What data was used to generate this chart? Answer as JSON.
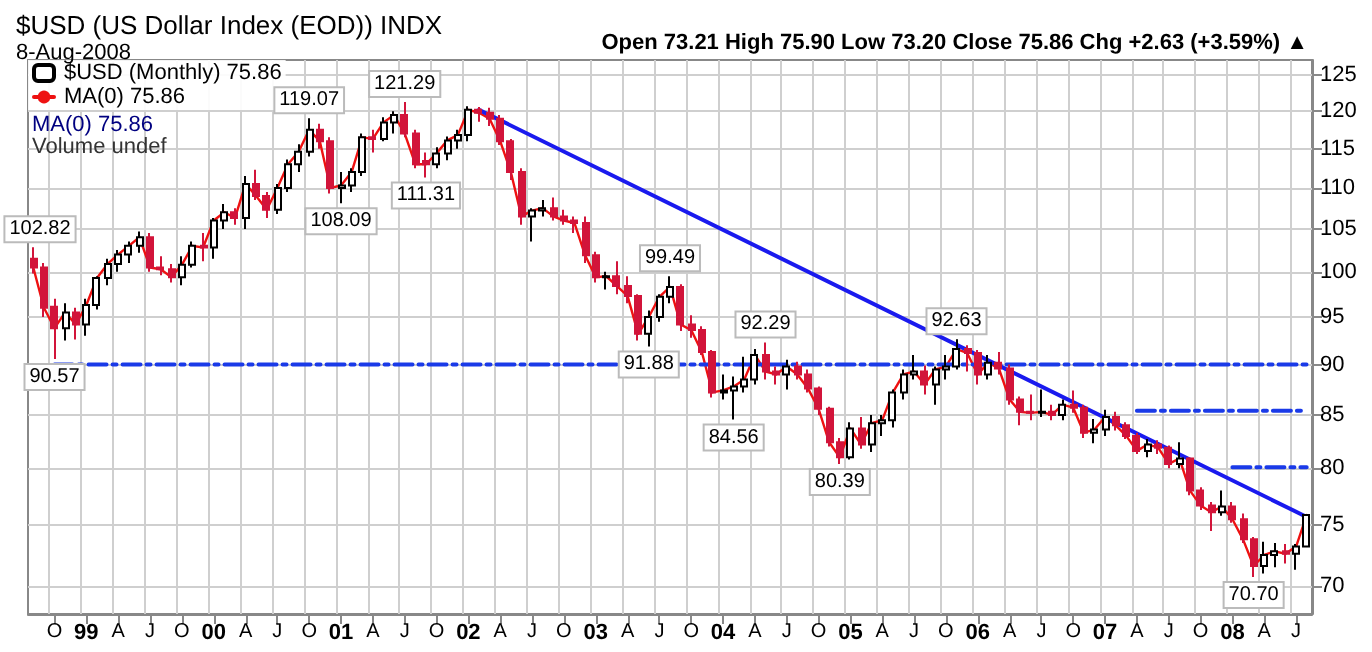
{
  "chart_data": {
    "type": "candlestick",
    "title": "$USD (US Dollar Index (EOD)) INDX",
    "subtitle": "8-Aug-2008",
    "annotations": [
      "Open 73.21 High 75.90 Low 73.20 Close 75.86 Chg +2.63 (+3.59%) ▲",
      "MA(0) 75.86",
      "Volume undef",
      {
        "text": "102.82",
        "y": 102.82
      },
      {
        "text": "90.57",
        "y": 90.57
      },
      {
        "text": "119.07",
        "y": 119.07
      },
      {
        "text": "108.09",
        "y": 108.09
      },
      {
        "text": "121.29",
        "y": 121.29
      },
      {
        "text": "111.31",
        "y": 111.31
      },
      {
        "text": "99.49",
        "y": 99.49
      },
      {
        "text": "91.88",
        "y": 91.88
      },
      {
        "text": "92.29",
        "y": 92.29
      },
      {
        "text": "84.56",
        "y": 84.56
      },
      {
        "text": "80.39",
        "y": 80.39
      },
      {
        "text": "92.63",
        "y": 92.63
      },
      {
        "text": "70.70",
        "y": 70.7
      }
    ],
    "categories": [
      null,
      null,
      "O",
      null,
      null,
      "99",
      null,
      null,
      "A",
      null,
      null,
      "J",
      null,
      null,
      "O",
      null,
      null,
      "00",
      null,
      null,
      "A",
      null,
      null,
      "J",
      null,
      null,
      "O",
      null,
      null,
      "01",
      null,
      null,
      "A",
      null,
      null,
      "J",
      null,
      null,
      "O",
      null,
      null,
      "02",
      null,
      null,
      "A",
      null,
      null,
      "J",
      null,
      null,
      "O",
      null,
      null,
      "03",
      null,
      null,
      "A",
      null,
      null,
      "J",
      null,
      null,
      "O",
      null,
      null,
      "04",
      null,
      null,
      "A",
      null,
      null,
      "J",
      null,
      null,
      "O",
      null,
      null,
      "05",
      null,
      null,
      "A",
      null,
      null,
      "J",
      null,
      null,
      "O",
      null,
      null,
      "06",
      null,
      null,
      "A",
      null,
      null,
      "J",
      null,
      null,
      "O",
      null,
      null,
      "07",
      null,
      null,
      "A",
      null,
      null,
      "J",
      null,
      null,
      "O",
      null,
      null,
      "08",
      null,
      null,
      "A",
      null,
      null,
      "J",
      null
    ],
    "log": "y",
    "ylim": [
      67.8,
      127.2
    ],
    "yticks": [
      70,
      75,
      80,
      85,
      90,
      95,
      100,
      105,
      110,
      115,
      120,
      125
    ],
    "grid": true,
    "legend": "top left",
    "series": [
      {
        "type": "candlestick",
        "name": "$USD (Monthly) 75.86",
        "colors": [
          "#d2143a",
          "#d2143a",
          "#d2143a",
          "#ffffff",
          "#d2143a",
          "#ffffff",
          "#ffffff",
          "#ffffff",
          "#ffffff",
          "#ffffff",
          "#ffffff",
          "#d2143a",
          "#d2143a",
          "#d2143a",
          "#ffffff",
          "#ffffff",
          "#d2143a",
          "#ffffff",
          "#ffffff",
          "#d2143a",
          "#ffffff",
          "#d2143a",
          "#d2143a",
          "#ffffff",
          "#ffffff",
          "#ffffff",
          "#ffffff",
          "#d2143a",
          "#d2143a",
          "#ffffff",
          "#ffffff",
          "#ffffff",
          "#d2143a",
          "#ffffff",
          "#ffffff",
          "#d2143a",
          "#d2143a",
          "#d2143a",
          "#ffffff",
          "#ffffff",
          "#ffffff",
          "#ffffff",
          "#d2143a",
          "#d2143a",
          "#d2143a",
          "#d2143a",
          "#d2143a",
          "#ffffff",
          "#ffffff",
          "#d2143a",
          "#d2143a",
          "#d2143a",
          "#d2143a",
          "#d2143a",
          "#ffffff",
          "#d2143a",
          "#d2143a",
          "#d2143a",
          "#ffffff",
          "#ffffff",
          "#ffffff",
          "#d2143a",
          "#d2143a",
          "#d2143a",
          "#d2143a",
          "#ffffff",
          "#ffffff",
          "#ffffff",
          "#ffffff",
          "#d2143a",
          "#d2143a",
          "#ffffff",
          "#d2143a",
          "#d2143a",
          "#d2143a",
          "#d2143a",
          "#d2143a",
          "#ffffff",
          "#d2143a",
          "#ffffff",
          "#ffffff",
          "#ffffff",
          "#ffffff",
          "#ffffff",
          "#d2143a",
          "#ffffff",
          "#ffffff",
          "#ffffff",
          "#d2143a",
          "#d2143a",
          "#ffffff",
          "#d2143a",
          "#d2143a",
          "#d2143a",
          "#d2143a",
          "#ffffff",
          "#d2143a",
          "#ffffff",
          "#d2143a",
          "#d2143a",
          "#ffffff",
          "#ffffff",
          "#d2143a",
          "#d2143a",
          "#d2143a",
          "#ffffff",
          "#d2143a",
          "#d2143a",
          "#ffffff",
          "#d2143a",
          "#d2143a",
          "#d2143a",
          "#ffffff",
          "#d2143a",
          "#d2143a",
          "#d2143a",
          "#ffffff",
          "#ffffff",
          "#d2143a",
          "#ffffff",
          "#ffffff"
        ],
        "ohlc": [
          [
            101.5,
            102.82,
            99.8,
            100.5
          ],
          [
            100.5,
            101.0,
            95.0,
            96.0
          ],
          [
            96.1,
            97.0,
            90.57,
            93.8
          ],
          [
            93.8,
            96.5,
            92.5,
            95.5
          ],
          [
            95.5,
            96.0,
            92.6,
            94.2
          ],
          [
            94.2,
            97.0,
            93.0,
            96.3
          ],
          [
            96.3,
            99.5,
            95.8,
            99.3
          ],
          [
            99.3,
            101.5,
            98.5,
            100.9
          ],
          [
            100.9,
            102.5,
            100.0,
            102.0
          ],
          [
            102.0,
            103.5,
            101.0,
            103.0
          ],
          [
            103.0,
            104.7,
            102.2,
            104.0
          ],
          [
            104.0,
            104.5,
            100.0,
            100.5
          ],
          [
            100.5,
            101.8,
            99.6,
            100.3
          ],
          [
            100.3,
            100.9,
            98.8,
            99.4
          ],
          [
            99.4,
            101.8,
            98.5,
            100.8
          ],
          [
            100.8,
            103.5,
            100.5,
            103.0
          ],
          [
            103.0,
            104.5,
            101.2,
            102.8
          ],
          [
            102.8,
            106.3,
            101.5,
            106.0
          ],
          [
            106.0,
            108.0,
            105.0,
            107.0
          ],
          [
            107.0,
            107.5,
            105.5,
            106.3
          ],
          [
            106.3,
            111.5,
            105.0,
            110.5
          ],
          [
            110.5,
            112.3,
            108.5,
            109.0
          ],
          [
            109.0,
            109.5,
            106.3,
            107.3
          ],
          [
            107.3,
            110.5,
            106.8,
            110.0
          ],
          [
            110.0,
            113.6,
            109.5,
            113.0
          ],
          [
            113.0,
            115.6,
            112.0,
            114.6
          ],
          [
            114.6,
            119.07,
            114.0,
            117.5
          ],
          [
            117.5,
            118.3,
            115.0,
            116.0
          ],
          [
            116.0,
            116.5,
            109.3,
            110.0
          ],
          [
            110.0,
            112.0,
            108.09,
            110.3
          ],
          [
            110.3,
            112.5,
            109.5,
            112.0
          ],
          [
            112.0,
            117.0,
            111.5,
            116.5
          ],
          [
            116.5,
            117.5,
            114.5,
            116.3
          ],
          [
            116.3,
            119.2,
            116.0,
            118.5
          ],
          [
            118.5,
            120.0,
            117.0,
            119.5
          ],
          [
            119.5,
            121.29,
            116.5,
            117.0
          ],
          [
            117.0,
            117.5,
            112.5,
            113.0
          ],
          [
            113.4,
            114.5,
            111.31,
            113.0
          ],
          [
            113.0,
            115.2,
            112.5,
            114.4
          ],
          [
            114.4,
            116.6,
            113.5,
            116.1
          ],
          [
            116.1,
            117.5,
            115.0,
            116.8
          ],
          [
            116.8,
            120.7,
            116.0,
            120.2
          ],
          [
            120.2,
            120.6,
            118.6,
            119.8
          ],
          [
            119.8,
            120.5,
            118.0,
            119.0
          ],
          [
            119.0,
            119.5,
            115.5,
            116.0
          ],
          [
            116.0,
            116.3,
            111.0,
            112.0
          ],
          [
            112.0,
            112.5,
            105.5,
            106.5
          ],
          [
            106.5,
            107.5,
            103.5,
            107.2
          ],
          [
            107.2,
            108.5,
            106.5,
            107.5
          ],
          [
            107.5,
            108.8,
            106.0,
            106.5
          ],
          [
            106.5,
            107.3,
            105.5,
            106.0
          ],
          [
            106.0,
            106.5,
            104.5,
            105.7
          ],
          [
            105.7,
            106.5,
            101.0,
            101.9
          ],
          [
            101.9,
            102.3,
            98.8,
            99.4
          ],
          [
            99.4,
            100.0,
            98.0,
            99.5
          ],
          [
            99.5,
            101.2,
            97.5,
            98.4
          ],
          [
            98.4,
            99.5,
            96.5,
            97.3
          ],
          [
            97.3,
            97.5,
            92.5,
            93.2
          ],
          [
            93.2,
            95.7,
            91.88,
            95.0
          ],
          [
            95.0,
            97.5,
            94.5,
            97.2
          ],
          [
            97.2,
            99.49,
            96.5,
            98.3
          ],
          [
            98.3,
            98.6,
            93.5,
            94.2
          ],
          [
            94.2,
            95.2,
            92.8,
            93.6
          ],
          [
            93.6,
            94.0,
            91.0,
            91.3
          ],
          [
            91.3,
            91.5,
            86.7,
            87.2
          ],
          [
            87.2,
            89.0,
            86.5,
            87.4
          ],
          [
            87.4,
            88.8,
            84.56,
            87.8
          ],
          [
            87.8,
            90.8,
            87.2,
            88.5
          ],
          [
            88.5,
            91.6,
            88.0,
            91.0
          ],
          [
            91.0,
            92.29,
            88.5,
            89.3
          ],
          [
            89.3,
            89.8,
            88.0,
            89.0
          ],
          [
            89.0,
            90.5,
            87.5,
            89.8
          ],
          [
            89.8,
            90.3,
            88.5,
            89.0
          ],
          [
            89.0,
            89.5,
            87.2,
            87.6
          ],
          [
            87.6,
            87.8,
            85.0,
            85.6
          ],
          [
            85.6,
            85.8,
            82.0,
            82.4
          ],
          [
            82.4,
            82.8,
            80.39,
            81.0
          ],
          [
            81.0,
            84.3,
            80.8,
            83.7
          ],
          [
            83.7,
            84.8,
            81.8,
            82.2
          ],
          [
            82.2,
            85.0,
            81.5,
            84.2
          ],
          [
            84.2,
            85.0,
            83.0,
            84.5
          ],
          [
            84.5,
            87.5,
            83.8,
            87.2
          ],
          [
            87.2,
            89.5,
            86.5,
            89.0
          ],
          [
            89.0,
            91.0,
            88.5,
            89.3
          ],
          [
            89.3,
            89.9,
            87.0,
            88.0
          ],
          [
            88.0,
            89.8,
            86.0,
            89.5
          ],
          [
            89.5,
            91.0,
            88.5,
            89.8
          ],
          [
            89.8,
            92.63,
            89.5,
            91.6
          ],
          [
            91.6,
            92.0,
            89.3,
            91.2
          ],
          [
            91.2,
            91.5,
            88.0,
            89.0
          ],
          [
            89.0,
            91.0,
            88.5,
            90.2
          ],
          [
            90.2,
            91.3,
            89.0,
            89.6
          ],
          [
            89.6,
            90.0,
            86.0,
            86.5
          ],
          [
            86.5,
            86.8,
            84.0,
            85.3
          ],
          [
            85.3,
            87.0,
            84.5,
            85.2
          ],
          [
            85.2,
            87.5,
            84.8,
            85.3
          ],
          [
            85.3,
            86.0,
            84.5,
            85.0
          ],
          [
            85.0,
            86.5,
            84.5,
            86.0
          ],
          [
            86.0,
            87.4,
            85.2,
            85.7
          ],
          [
            85.7,
            86.0,
            82.8,
            83.3
          ],
          [
            83.3,
            84.6,
            82.3,
            83.6
          ],
          [
            83.6,
            85.5,
            83.0,
            84.8
          ],
          [
            84.8,
            85.3,
            83.5,
            84.0
          ],
          [
            84.0,
            84.3,
            82.7,
            83.0
          ],
          [
            83.0,
            83.3,
            81.3,
            81.6
          ],
          [
            81.6,
            82.7,
            81.0,
            82.2
          ],
          [
            82.2,
            82.6,
            81.3,
            81.9
          ],
          [
            81.9,
            82.1,
            80.0,
            80.4
          ],
          [
            80.4,
            82.4,
            80.0,
            80.9
          ],
          [
            80.9,
            81.0,
            77.6,
            78.0
          ],
          [
            78.0,
            78.3,
            76.3,
            76.7
          ],
          [
            76.7,
            77.0,
            74.5,
            76.1
          ],
          [
            76.1,
            78.0,
            75.8,
            76.6
          ],
          [
            76.6,
            77.0,
            75.2,
            75.5
          ],
          [
            75.5,
            76.0,
            73.5,
            73.8
          ],
          [
            73.8,
            74.0,
            70.7,
            71.6
          ],
          [
            71.6,
            73.6,
            71.0,
            72.5
          ],
          [
            72.5,
            73.5,
            71.5,
            72.8
          ],
          [
            72.8,
            73.4,
            71.8,
            72.6
          ],
          [
            72.6,
            73.4,
            71.3,
            73.2
          ],
          [
            73.21,
            75.9,
            73.2,
            75.86
          ]
        ]
      },
      {
        "type": "line",
        "name": "MA(0) 75.86",
        "color": "#ee1111",
        "values": [
          100.5,
          96.0,
          93.8,
          95.5,
          94.2,
          96.3,
          99.3,
          100.9,
          102.0,
          103.0,
          104.0,
          100.5,
          100.3,
          99.4,
          100.8,
          103.0,
          102.8,
          106.0,
          107.0,
          106.3,
          110.5,
          109.0,
          107.3,
          110.0,
          113.0,
          114.6,
          117.5,
          116.0,
          110.0,
          110.3,
          112.0,
          116.5,
          116.3,
          118.5,
          119.5,
          117.0,
          113.0,
          113.0,
          114.4,
          116.1,
          116.8,
          120.2,
          119.8,
          119.0,
          116.0,
          112.0,
          106.5,
          107.2,
          107.5,
          106.5,
          106.0,
          105.7,
          101.9,
          99.4,
          99.5,
          98.4,
          97.3,
          93.2,
          95.0,
          97.2,
          98.3,
          94.2,
          93.6,
          91.3,
          87.2,
          87.4,
          87.8,
          88.5,
          91.0,
          89.3,
          89.0,
          89.8,
          89.0,
          87.6,
          85.6,
          82.4,
          81.0,
          83.7,
          82.2,
          84.2,
          84.5,
          87.2,
          89.0,
          89.3,
          88.0,
          89.5,
          89.8,
          91.6,
          91.2,
          89.0,
          90.2,
          89.6,
          86.5,
          85.3,
          85.2,
          85.3,
          85.0,
          86.0,
          85.7,
          83.3,
          83.6,
          84.8,
          84.0,
          83.0,
          81.6,
          82.2,
          81.9,
          80.4,
          80.9,
          78.0,
          76.7,
          76.1,
          76.6,
          75.5,
          73.8,
          71.6,
          72.5,
          72.8,
          72.6,
          73.2,
          75.86
        ]
      },
      {
        "type": "line",
        "color": "#1a1aee",
        "values": [
          null,
          null,
          null,
          null,
          null,
          null,
          null,
          null,
          null,
          null,
          null,
          null,
          null,
          null,
          null,
          null,
          null,
          null,
          null,
          null,
          null,
          null,
          null,
          null,
          null,
          null,
          null,
          null,
          null,
          null,
          null,
          null,
          null,
          null,
          null,
          null,
          null,
          null,
          null,
          null,
          null,
          null,
          120.2,
          null,
          null,
          null,
          null,
          null,
          null,
          null,
          null,
          null,
          null,
          null,
          null,
          null,
          null,
          null,
          null,
          null,
          null,
          null,
          null,
          null,
          null,
          null,
          null,
          null,
          null,
          null,
          null,
          null,
          null,
          null,
          null,
          null,
          null,
          null,
          null,
          null,
          null,
          null,
          null,
          null,
          null,
          null,
          null,
          null,
          null,
          null,
          null,
          null,
          null,
          null,
          null,
          null,
          null,
          null,
          null,
          null,
          null,
          null,
          null,
          null,
          null,
          null,
          null,
          null,
          null,
          null,
          null,
          null,
          null,
          null,
          null,
          null,
          null,
          null,
          null,
          null,
          75.7
        ]
      },
      {
        "type": "line",
        "color": "#1a3ae8",
        "line_style": "dashed",
        "values": [
          null,
          null,
          90,
          null,
          null,
          null,
          null,
          null,
          null,
          null,
          null,
          null,
          null,
          null,
          null,
          null,
          null,
          null,
          null,
          null,
          null,
          null,
          null,
          null,
          null,
          null,
          null,
          null,
          null,
          null,
          null,
          null,
          null,
          null,
          null,
          null,
          null,
          null,
          null,
          null,
          null,
          null,
          null,
          null,
          null,
          null,
          null,
          null,
          null,
          null,
          null,
          null,
          null,
          null,
          null,
          null,
          null,
          null,
          null,
          null,
          null,
          null,
          null,
          null,
          null,
          null,
          null,
          null,
          null,
          null,
          null,
          null,
          null,
          null,
          null,
          null,
          null,
          null,
          null,
          null,
          null,
          null,
          null,
          null,
          null,
          null,
          null,
          null,
          null,
          null,
          null,
          null,
          null,
          null,
          null,
          null,
          null,
          null,
          null,
          null,
          null,
          null,
          null,
          null,
          null,
          null,
          null,
          null,
          null,
          null,
          null,
          null,
          null,
          null,
          null,
          null,
          null,
          null,
          null,
          null,
          90
        ]
      },
      {
        "type": "line",
        "color": "#1a3ae8",
        "line_style": "dashed",
        "values": [
          null,
          null,
          null,
          null,
          null,
          null,
          null,
          null,
          null,
          null,
          null,
          null,
          null,
          null,
          null,
          null,
          null,
          null,
          null,
          null,
          null,
          null,
          null,
          null,
          null,
          null,
          null,
          null,
          null,
          null,
          null,
          null,
          null,
          null,
          null,
          null,
          null,
          null,
          null,
          null,
          null,
          null,
          null,
          null,
          null,
          null,
          null,
          null,
          null,
          null,
          null,
          null,
          null,
          null,
          null,
          null,
          null,
          null,
          null,
          null,
          null,
          null,
          null,
          null,
          null,
          null,
          null,
          null,
          null,
          null,
          null,
          null,
          null,
          null,
          null,
          null,
          null,
          null,
          null,
          null,
          null,
          null,
          null,
          null,
          null,
          null,
          null,
          null,
          null,
          null,
          null,
          null,
          null,
          null,
          null,
          null,
          null,
          null,
          null,
          null,
          null,
          null,
          null,
          null,
          85.4,
          null,
          null,
          null,
          null,
          null,
          null,
          null,
          null,
          null,
          null,
          null,
          null,
          null,
          null,
          null,
          85.4
        ]
      },
      {
        "type": "line",
        "color": "#1a3ae8",
        "line_style": "dashed",
        "values": [
          null,
          null,
          null,
          null,
          null,
          null,
          null,
          null,
          null,
          null,
          null,
          null,
          null,
          null,
          null,
          null,
          null,
          null,
          null,
          null,
          null,
          null,
          null,
          null,
          null,
          null,
          null,
          null,
          null,
          null,
          null,
          null,
          null,
          null,
          null,
          null,
          null,
          null,
          null,
          null,
          null,
          null,
          null,
          null,
          null,
          null,
          null,
          null,
          null,
          null,
          null,
          null,
          null,
          null,
          null,
          null,
          null,
          null,
          null,
          null,
          null,
          null,
          null,
          null,
          null,
          null,
          null,
          null,
          null,
          null,
          null,
          null,
          null,
          null,
          null,
          null,
          null,
          null,
          null,
          null,
          null,
          null,
          null,
          null,
          null,
          null,
          null,
          null,
          null,
          null,
          null,
          null,
          null,
          null,
          null,
          null,
          null,
          null,
          null,
          null,
          null,
          null,
          null,
          null,
          null,
          null,
          null,
          null,
          null,
          null,
          null,
          null,
          null,
          80.1,
          null,
          null,
          null,
          null,
          null,
          null,
          80.1
        ]
      }
    ]
  }
}
